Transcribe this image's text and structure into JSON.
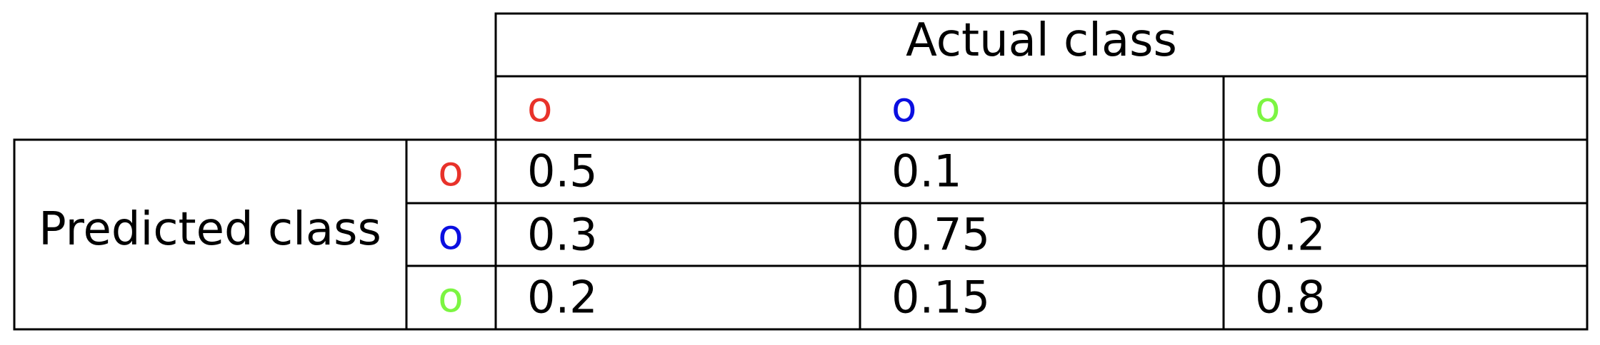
{
  "chart_data": {
    "type": "table",
    "column_header": "Actual class",
    "row_header": "Predicted class",
    "classes": [
      {
        "symbol": "o",
        "color": "#e8322a"
      },
      {
        "symbol": "o",
        "color": "#0a0ee0"
      },
      {
        "symbol": "o",
        "color": "#7cf542"
      }
    ],
    "rows": [
      [
        "0.5",
        "0.1",
        "0"
      ],
      [
        "0.3",
        "0.75",
        "0.2"
      ],
      [
        "0.2",
        "0.15",
        "0.8"
      ]
    ]
  }
}
